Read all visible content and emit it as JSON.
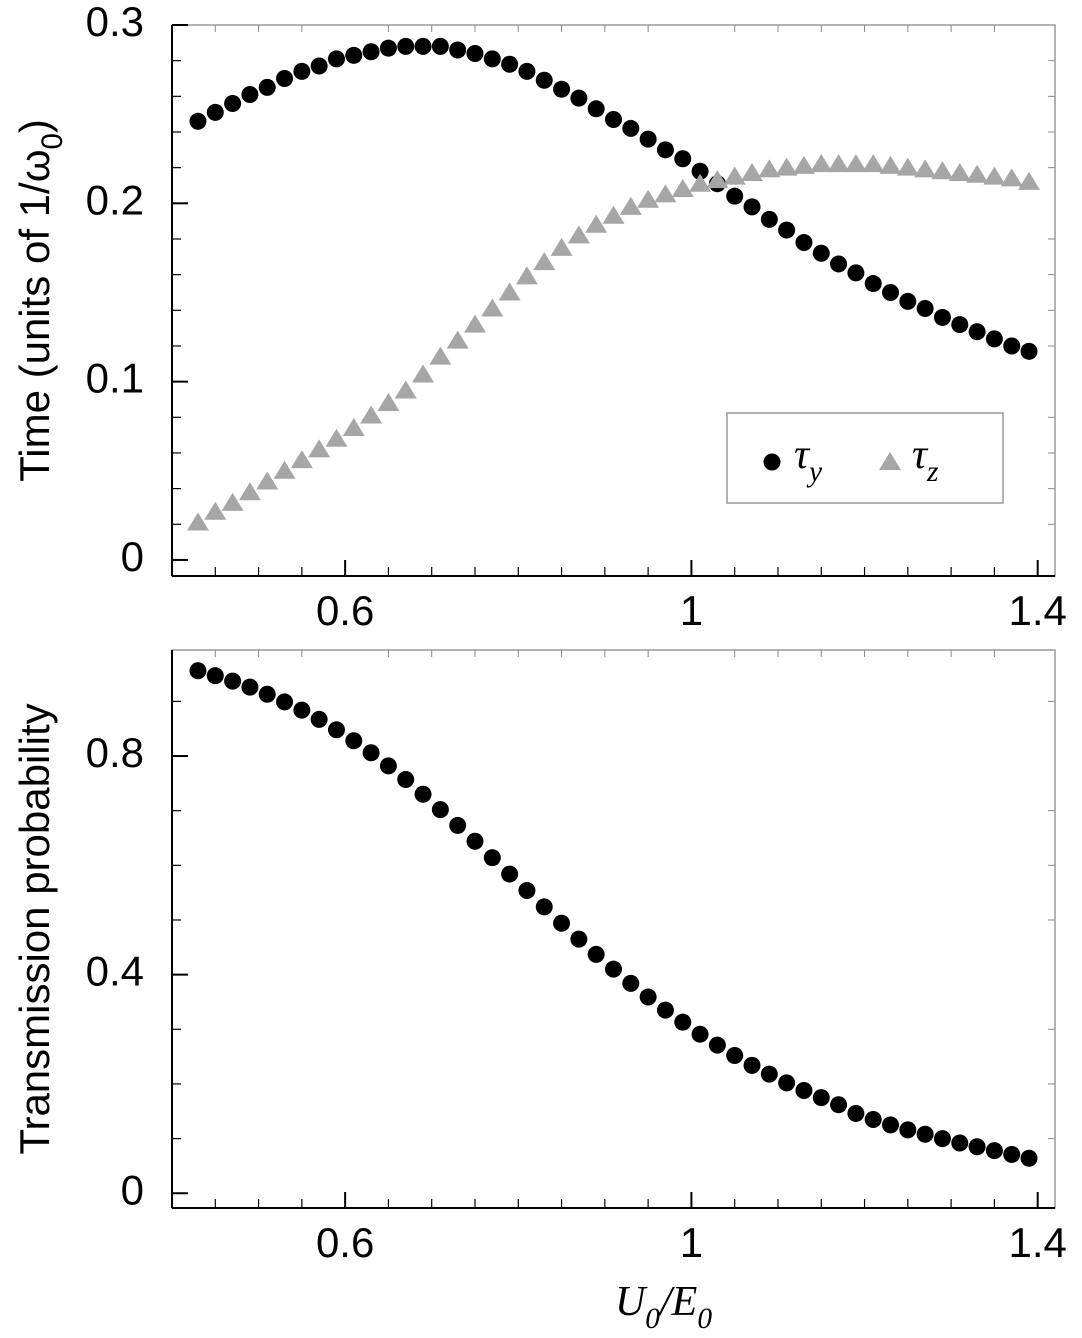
{
  "chart_data": [
    {
      "type": "scatter",
      "ylabel": "Time  (units of 1/ω0)",
      "x": [
        0.43,
        0.45,
        0.47,
        0.49,
        0.51,
        0.53,
        0.55,
        0.57,
        0.59,
        0.61,
        0.63,
        0.65,
        0.67,
        0.69,
        0.71,
        0.73,
        0.75,
        0.77,
        0.79,
        0.81,
        0.83,
        0.85,
        0.87,
        0.89,
        0.91,
        0.93,
        0.95,
        0.97,
        0.99,
        1.01,
        1.03,
        1.05,
        1.07,
        1.09,
        1.11,
        1.13,
        1.15,
        1.17,
        1.19,
        1.21,
        1.23,
        1.25,
        1.27,
        1.29,
        1.31,
        1.33,
        1.35,
        1.37,
        1.39
      ],
      "series": [
        {
          "name": "τy",
          "color": "#000000",
          "marker": "circle",
          "values": [
            0.246,
            0.251,
            0.256,
            0.261,
            0.265,
            0.27,
            0.274,
            0.277,
            0.281,
            0.283,
            0.285,
            0.287,
            0.288,
            0.288,
            0.288,
            0.286,
            0.284,
            0.281,
            0.278,
            0.274,
            0.269,
            0.264,
            0.259,
            0.253,
            0.247,
            0.242,
            0.236,
            0.23,
            0.225,
            0.218,
            0.211,
            0.204,
            0.198,
            0.191,
            0.185,
            0.178,
            0.172,
            0.166,
            0.161,
            0.155,
            0.15,
            0.145,
            0.141,
            0.136,
            0.132,
            0.128,
            0.124,
            0.12,
            0.117
          ]
        },
        {
          "name": "τz",
          "color": "#a6a6a6",
          "marker": "triangle",
          "values": [
            0.021,
            0.027,
            0.032,
            0.038,
            0.044,
            0.05,
            0.056,
            0.062,
            0.068,
            0.074,
            0.081,
            0.088,
            0.095,
            0.104,
            0.114,
            0.123,
            0.132,
            0.141,
            0.15,
            0.159,
            0.167,
            0.175,
            0.182,
            0.188,
            0.193,
            0.198,
            0.202,
            0.205,
            0.208,
            0.211,
            0.213,
            0.215,
            0.217,
            0.219,
            0.22,
            0.221,
            0.222,
            0.222,
            0.222,
            0.222,
            0.221,
            0.22,
            0.219,
            0.218,
            0.217,
            0.216,
            0.215,
            0.214,
            0.212
          ]
        }
      ],
      "xlim": [
        0.4,
        1.42
      ],
      "xticks": [
        0.6,
        1,
        1.4
      ],
      "xminorticks": [
        0.45,
        0.5,
        0.55,
        0.65,
        0.7,
        0.75,
        0.8,
        0.85,
        0.9,
        0.95,
        1.05,
        1.1,
        1.15,
        1.2,
        1.25,
        1.3,
        1.35
      ],
      "ylim": [
        -0.009,
        0.3
      ],
      "yticks": [
        0,
        0.1,
        0.2,
        0.3
      ],
      "yminorticks": [
        0.02,
        0.04,
        0.06,
        0.08,
        0.12,
        0.14,
        0.16,
        0.18,
        0.22,
        0.24,
        0.26,
        0.28
      ],
      "legend": "lower right"
    },
    {
      "type": "scatter",
      "ylabel": "Transmission probability",
      "xlabel": "U0/E0",
      "x": [
        0.43,
        0.45,
        0.47,
        0.49,
        0.51,
        0.53,
        0.55,
        0.57,
        0.59,
        0.61,
        0.63,
        0.65,
        0.67,
        0.69,
        0.71,
        0.73,
        0.75,
        0.77,
        0.79,
        0.81,
        0.83,
        0.85,
        0.87,
        0.89,
        0.91,
        0.93,
        0.95,
        0.97,
        0.99,
        1.01,
        1.03,
        1.05,
        1.07,
        1.09,
        1.11,
        1.13,
        1.15,
        1.17,
        1.19,
        1.21,
        1.23,
        1.25,
        1.27,
        1.29,
        1.31,
        1.33,
        1.35,
        1.37,
        1.39
      ],
      "values": [
        0.956,
        0.947,
        0.937,
        0.926,
        0.913,
        0.899,
        0.884,
        0.867,
        0.848,
        0.828,
        0.806,
        0.782,
        0.757,
        0.73,
        0.702,
        0.673,
        0.644,
        0.614,
        0.584,
        0.554,
        0.524,
        0.494,
        0.465,
        0.437,
        0.41,
        0.384,
        0.359,
        0.335,
        0.313,
        0.291,
        0.271,
        0.252,
        0.234,
        0.218,
        0.202,
        0.188,
        0.175,
        0.162,
        0.146,
        0.135,
        0.125,
        0.116,
        0.108,
        0.1,
        0.092,
        0.085,
        0.078,
        0.071,
        0.064
      ],
      "color": "#000000",
      "marker": "circle",
      "xlim": [
        0.4,
        1.42
      ],
      "xticks": [
        0.6,
        1,
        1.4
      ],
      "xminorticks": [
        0.45,
        0.5,
        0.55,
        0.65,
        0.7,
        0.75,
        0.8,
        0.85,
        0.9,
        0.95,
        1.05,
        1.1,
        1.15,
        1.2,
        1.25,
        1.3,
        1.35
      ],
      "ylim": [
        -0.027,
        0.994
      ],
      "yticks": [
        0,
        0.4,
        0.8
      ],
      "yminorticks": [
        0.1,
        0.2,
        0.3,
        0.5,
        0.6,
        0.7,
        0.9
      ]
    }
  ]
}
